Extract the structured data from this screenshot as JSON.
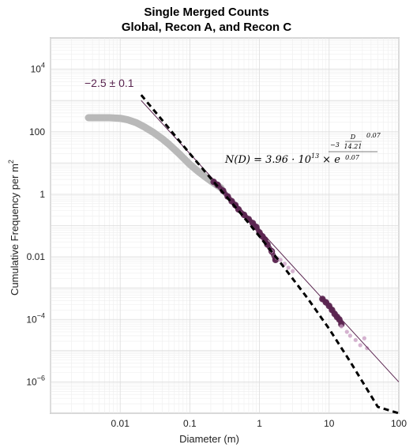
{
  "chart_data": {
    "type": "scatter",
    "title_line1": "Single Merged Counts",
    "title_line2": "Global, Recon A, and Recon C",
    "xlabel": "Diameter (m)",
    "ylabel": "Cumulative Frequency per m",
    "ylabel_sup": "2",
    "xscale": "log",
    "yscale": "log",
    "xlim": [
      0.001,
      100
    ],
    "ylim": [
      1e-07,
      100000
    ],
    "grid": true,
    "x_ticks": [
      {
        "value": 0.01,
        "label": "0.01"
      },
      {
        "value": 0.1,
        "label": "0.1"
      },
      {
        "value": 1,
        "label": "1"
      },
      {
        "value": 10,
        "label": "10"
      },
      {
        "value": 100,
        "label": "100"
      }
    ],
    "y_ticks": [
      {
        "value": 10000,
        "base": "10",
        "exp": "4"
      },
      {
        "value": 100,
        "base": "100",
        "exp": ""
      },
      {
        "value": 1,
        "base": "1",
        "exp": ""
      },
      {
        "value": 0.01,
        "base": "0.01",
        "exp": ""
      },
      {
        "value": 0.0001,
        "base": "10",
        "exp": "−4"
      },
      {
        "value": 1e-06,
        "base": "10",
        "exp": "−6"
      }
    ],
    "series": [
      {
        "style": "thick-gray-band",
        "color": "#b9b9b9",
        "x": [
          0.0035,
          0.005,
          0.007,
          0.01,
          0.013,
          0.017,
          0.022,
          0.03,
          0.04,
          0.05,
          0.07,
          0.1,
          0.13,
          0.17,
          0.22,
          0.28
        ],
        "y": [
          280,
          280,
          280,
          270,
          240,
          195,
          145,
          95,
          60,
          40,
          20,
          9,
          5.5,
          3.5,
          2.3,
          1.6
        ]
      },
      {
        "style": "scatter",
        "color": "#5a2550",
        "x": [
          0.22,
          0.25,
          0.3,
          0.35,
          0.4,
          0.45,
          0.5,
          0.6,
          0.7,
          0.8,
          0.9,
          1.0,
          1.1,
          1.2,
          1.3,
          1.5,
          1.7
        ],
        "y": [
          2.5,
          2.0,
          1.3,
          0.85,
          0.6,
          0.45,
          0.33,
          0.22,
          0.16,
          0.12,
          0.09,
          0.06,
          0.045,
          0.035,
          0.025,
          0.015,
          0.008
        ]
      },
      {
        "style": "scatter-faint",
        "color": "#c79ac0",
        "x": [
          1.5,
          1.8,
          2.0,
          2.3,
          2.6,
          3.0
        ],
        "y": [
          0.015,
          0.009,
          0.008,
          0.006,
          0.0045,
          0.0035
        ]
      },
      {
        "style": "scatter",
        "color": "#5a2550",
        "x": [
          8,
          9,
          10,
          11,
          12,
          13,
          14,
          15
        ],
        "y": [
          0.00045,
          0.00035,
          0.00027,
          0.0002,
          0.00015,
          0.00012,
          0.0001,
          7e-05
        ]
      },
      {
        "style": "scatter-faint",
        "color": "#c79ac0",
        "x": [
          15,
          18,
          20,
          24,
          28,
          32,
          35
        ],
        "y": [
          6e-05,
          4e-05,
          3e-05,
          2.2e-05,
          1.5e-05,
          2.5e-05,
          1.2e-05
        ]
      }
    ],
    "power_law_fit": {
      "color": "#5a2550",
      "x": [
        0.02,
        100
      ],
      "y": [
        1000,
        1e-06
      ]
    },
    "exp_fit": {
      "color": "#000000",
      "x": [
        0.02,
        0.05,
        0.1,
        0.2,
        0.5,
        1,
        2,
        5,
        10,
        20,
        50,
        100
      ],
      "y": [
        1500,
        130,
        20,
        3.2,
        0.3,
        0.045,
        0.0065,
        0.00045,
        5e-05,
        4.5e-06,
        1.6e-07,
        1e-07
      ]
    },
    "annotations": {
      "slope_label": "−2.5 ± 0.1",
      "slope_color": "#5a2550",
      "equation": {
        "lhs": "N(D) = 3.96 · 10",
        "lhs_exp": "13",
        "times": "× e",
        "exp_prefix": "−3",
        "frac_num": "D",
        "frac_den": "14.21",
        "power": "0.07",
        "outer_den": "0.07"
      }
    }
  }
}
